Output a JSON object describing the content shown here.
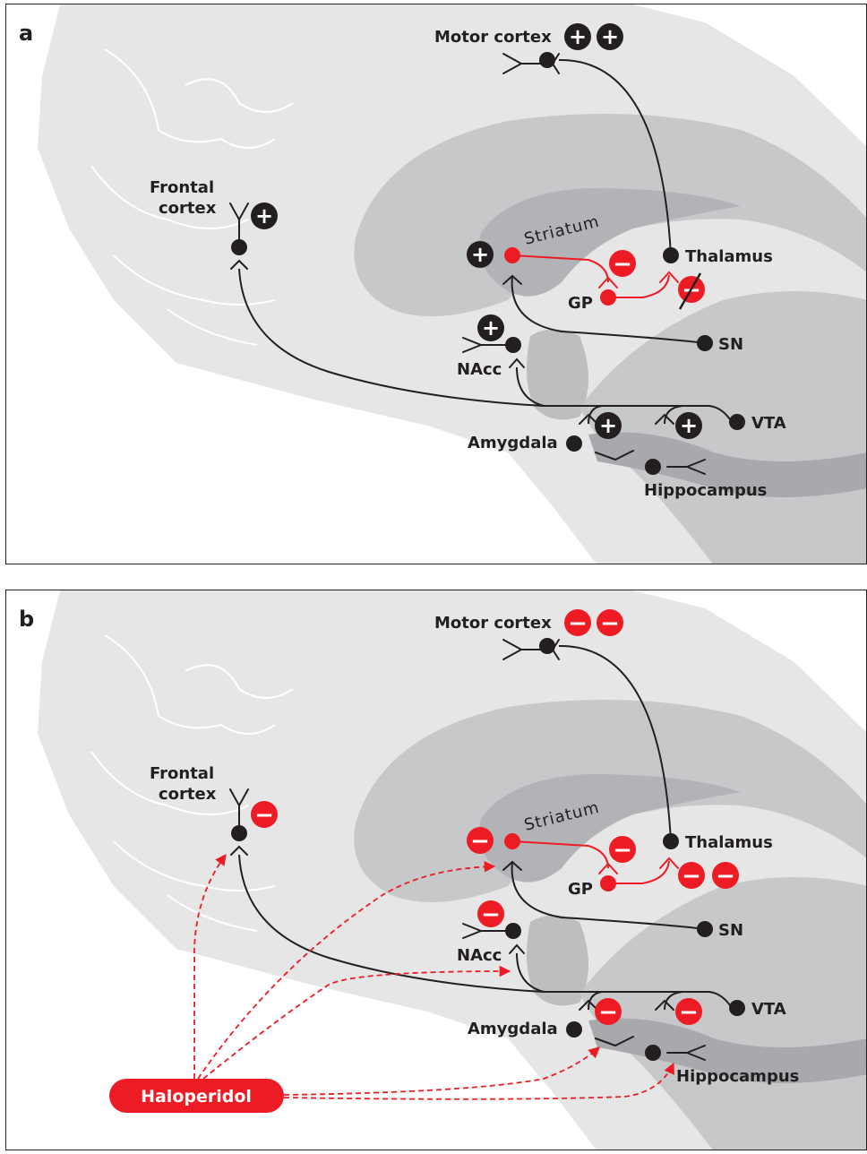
{
  "colors": {
    "red": "#ed1c24",
    "black": "#231f20",
    "brain_light": "#e6e6e7",
    "brain_mid": "#c7c8ca",
    "brain_dark": "#a7a9ac"
  },
  "panel_a": {
    "letter": "a",
    "labels": {
      "motor_cortex": "Motor cortex",
      "frontal_cortex_line1": "Frontal",
      "frontal_cortex_line2": "cortex",
      "striatum": "Striatum",
      "thalamus": "Thalamus",
      "gp": "GP",
      "nacc": "NAcc",
      "sn": "SN",
      "vta": "VTA",
      "amygdala": "Amygdala",
      "hippocampus": "Hippocampus"
    },
    "signs": {
      "plus": "+",
      "minus": "−"
    }
  },
  "panel_b": {
    "letter": "b",
    "labels": {
      "motor_cortex": "Motor cortex",
      "frontal_cortex_line1": "Frontal",
      "frontal_cortex_line2": "cortex",
      "striatum": "Striatum",
      "thalamus": "Thalamus",
      "gp": "GP",
      "nacc": "NAcc",
      "sn": "SN",
      "vta": "VTA",
      "amygdala": "Amygdala",
      "hippocampus": "Hippocampus"
    },
    "drug": "Haloperidol",
    "signs": {
      "minus": "−"
    }
  }
}
